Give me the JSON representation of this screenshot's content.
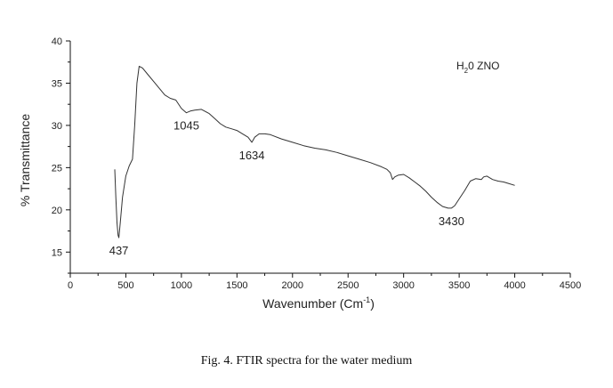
{
  "chart_data": {
    "type": "line",
    "title": "",
    "xlabel": "Wavenumber (Cm",
    "xlabel_sup": "-1",
    "xlabel_tail": ")",
    "ylabel": "% Transmittance",
    "xlim": [
      0,
      4500
    ],
    "ylim": [
      12.5,
      40
    ],
    "x_ticks": [
      0,
      500,
      1000,
      1500,
      2000,
      2500,
      3000,
      3500,
      4000,
      4500
    ],
    "x_tick_labels": [
      "0",
      "500",
      "1000",
      "1500",
      "2000",
      "2500",
      "3000",
      "3500",
      "4000",
      "4500"
    ],
    "y_ticks": [
      15,
      20,
      25,
      30,
      35,
      40
    ],
    "y_tick_labels": [
      "15",
      "20",
      "25",
      "30",
      "35",
      "40"
    ],
    "legend": {
      "text_pre": "H",
      "text_sub": "2",
      "text_post": "0 ZNO",
      "placement": "top-right"
    },
    "series": [
      {
        "name": "H2O ZNO",
        "x": [
          400,
          410,
          420,
          430,
          437,
          450,
          470,
          500,
          530,
          560,
          580,
          600,
          620,
          650,
          700,
          750,
          800,
          850,
          900,
          950,
          1000,
          1045,
          1080,
          1120,
          1180,
          1250,
          1300,
          1350,
          1400,
          1450,
          1500,
          1550,
          1600,
          1634,
          1660,
          1700,
          1750,
          1800,
          1900,
          2000,
          2100,
          2200,
          2300,
          2400,
          2500,
          2600,
          2700,
          2800,
          2850,
          2880,
          2900,
          2920,
          2950,
          3000,
          3050,
          3100,
          3150,
          3200,
          3250,
          3300,
          3350,
          3400,
          3430,
          3460,
          3500,
          3550,
          3600,
          3650,
          3700,
          3720,
          3750,
          3800,
          3850,
          3900,
          3950,
          4000
        ],
        "y": [
          24.8,
          21.5,
          18.5,
          17.0,
          16.7,
          18.5,
          21.5,
          24.0,
          25.2,
          26.0,
          30.0,
          35.0,
          37.0,
          36.8,
          36.0,
          35.2,
          34.4,
          33.6,
          33.2,
          33.0,
          32.0,
          31.5,
          31.7,
          31.8,
          31.9,
          31.4,
          30.8,
          30.2,
          29.8,
          29.6,
          29.4,
          29.0,
          28.6,
          28.0,
          28.6,
          29.0,
          29.0,
          28.9,
          28.4,
          28.0,
          27.6,
          27.3,
          27.1,
          26.8,
          26.4,
          26.0,
          25.6,
          25.1,
          24.8,
          24.4,
          23.6,
          23.9,
          24.1,
          24.2,
          23.8,
          23.3,
          22.8,
          22.2,
          21.5,
          20.9,
          20.4,
          20.2,
          20.2,
          20.5,
          21.3,
          22.3,
          23.4,
          23.7,
          23.6,
          23.9,
          24.0,
          23.6,
          23.4,
          23.3,
          23.1,
          22.9
        ]
      }
    ],
    "annotations": [
      {
        "text": "437",
        "x": 437,
        "y": 16.7
      },
      {
        "text": "1045",
        "x": 1045,
        "y": 31.5
      },
      {
        "text": "1634",
        "x": 1634,
        "y": 28.0
      },
      {
        "text": "3430",
        "x": 3430,
        "y": 20.2
      }
    ]
  },
  "caption": "Fig. 4. FTIR spectra for the water medium"
}
